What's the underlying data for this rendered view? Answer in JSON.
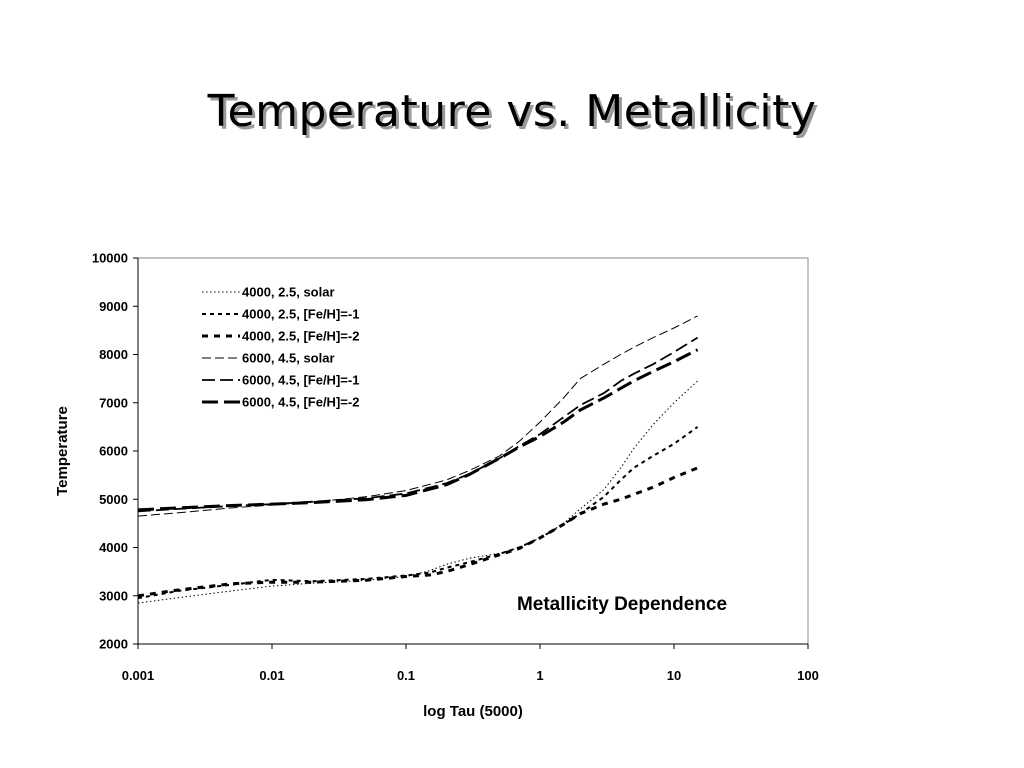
{
  "slide": {
    "title": "Temperature vs. Metallicity"
  },
  "chart_data": {
    "type": "line",
    "title": "",
    "xlabel": "log Tau (5000)",
    "ylabel": "Temperature",
    "xscale": "log",
    "xlim": [
      0.001,
      100
    ],
    "ylim": [
      2000,
      10000
    ],
    "x_ticks": [
      "0.001",
      "0.01",
      "0.1",
      "1",
      "10",
      "100"
    ],
    "y_ticks": [
      "2000",
      "3000",
      "4000",
      "5000",
      "6000",
      "7000",
      "8000",
      "9000",
      "10000"
    ],
    "grid": false,
    "legend_position": "top-left",
    "annotation": "Metallicity Dependence",
    "series": [
      {
        "name": "4000, 2.5, solar",
        "style": "dotted-thin",
        "x": [
          0.001,
          0.002,
          0.005,
          0.01,
          0.02,
          0.05,
          0.1,
          0.15,
          0.2,
          0.3,
          0.5,
          0.7,
          1,
          1.5,
          2,
          3,
          4,
          5,
          7,
          10,
          15
        ],
        "y": [
          2850,
          2960,
          3100,
          3200,
          3260,
          3320,
          3400,
          3520,
          3650,
          3780,
          3880,
          4000,
          4200,
          4500,
          4800,
          5200,
          5650,
          6050,
          6550,
          7000,
          7450
        ]
      },
      {
        "name": "4000, 2.5, [Fe/H]=-1",
        "style": "dashed-short",
        "x": [
          0.001,
          0.002,
          0.005,
          0.01,
          0.02,
          0.05,
          0.1,
          0.15,
          0.2,
          0.3,
          0.5,
          0.7,
          1,
          1.5,
          2,
          3,
          4,
          5,
          7,
          10,
          15
        ],
        "y": [
          2950,
          3100,
          3230,
          3330,
          3300,
          3350,
          3420,
          3480,
          3580,
          3700,
          3870,
          4000,
          4200,
          4480,
          4700,
          5050,
          5400,
          5650,
          5900,
          6150,
          6500
        ]
      },
      {
        "name": "4000, 2.5, [Fe/H]=-2",
        "style": "dashed-bold-short",
        "x": [
          0.001,
          0.002,
          0.005,
          0.01,
          0.02,
          0.05,
          0.1,
          0.15,
          0.2,
          0.3,
          0.5,
          0.7,
          1,
          1.5,
          2,
          3,
          4,
          5,
          7,
          10,
          15
        ],
        "y": [
          3000,
          3120,
          3250,
          3280,
          3280,
          3320,
          3400,
          3430,
          3500,
          3650,
          3850,
          3980,
          4200,
          4480,
          4700,
          4900,
          5000,
          5100,
          5250,
          5450,
          5650
        ]
      },
      {
        "name": "6000, 4.5, solar",
        "style": "dashed-thin-long",
        "x": [
          0.001,
          0.002,
          0.005,
          0.01,
          0.02,
          0.05,
          0.1,
          0.2,
          0.3,
          0.5,
          0.7,
          1,
          1.5,
          2,
          3,
          4,
          5,
          7,
          10,
          15
        ],
        "y": [
          4650,
          4720,
          4820,
          4880,
          4940,
          5050,
          5180,
          5400,
          5600,
          5900,
          6200,
          6600,
          7100,
          7500,
          7800,
          8000,
          8150,
          8350,
          8550,
          8800
        ]
      },
      {
        "name": "6000, 4.5, [Fe/H]=-1",
        "style": "dashed-medium-long",
        "x": [
          0.001,
          0.002,
          0.005,
          0.01,
          0.02,
          0.05,
          0.1,
          0.2,
          0.3,
          0.5,
          0.7,
          1,
          1.5,
          2,
          3,
          4,
          5,
          7,
          10,
          15
        ],
        "y": [
          4750,
          4800,
          4860,
          4900,
          4950,
          5020,
          5120,
          5330,
          5530,
          5850,
          6100,
          6350,
          6700,
          6950,
          7200,
          7450,
          7600,
          7800,
          8050,
          8350
        ]
      },
      {
        "name": "6000, 4.5, [Fe/H]=-2",
        "style": "dashed-bold-long",
        "x": [
          0.001,
          0.002,
          0.005,
          0.01,
          0.02,
          0.05,
          0.1,
          0.2,
          0.3,
          0.5,
          0.7,
          1,
          1.5,
          2,
          3,
          4,
          5,
          7,
          10,
          15
        ],
        "y": [
          4780,
          4820,
          4870,
          4900,
          4930,
          4990,
          5080,
          5300,
          5520,
          5850,
          6080,
          6300,
          6600,
          6850,
          7100,
          7300,
          7450,
          7650,
          7850,
          8100
        ]
      }
    ]
  }
}
